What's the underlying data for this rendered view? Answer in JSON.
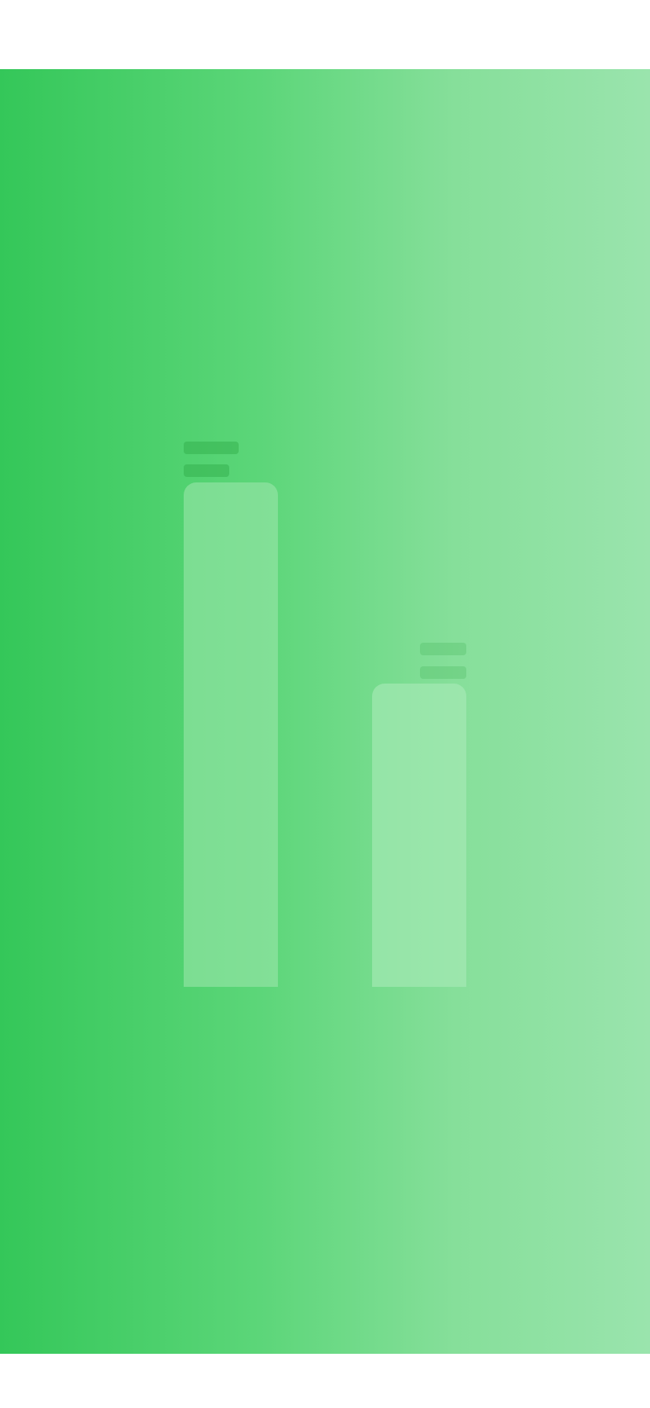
{
  "screen": {
    "state": "loading-skeleton"
  },
  "colors": {
    "gradient_start": "#34c759",
    "gradient_end": "#9ae4ad",
    "top_bar": "#ffffff",
    "bottom_bar": "#ffffff"
  },
  "bars": [
    {
      "name": "bar-1",
      "relative_level": 1.0
    },
    {
      "name": "bar-2",
      "relative_level": 0.6
    }
  ]
}
